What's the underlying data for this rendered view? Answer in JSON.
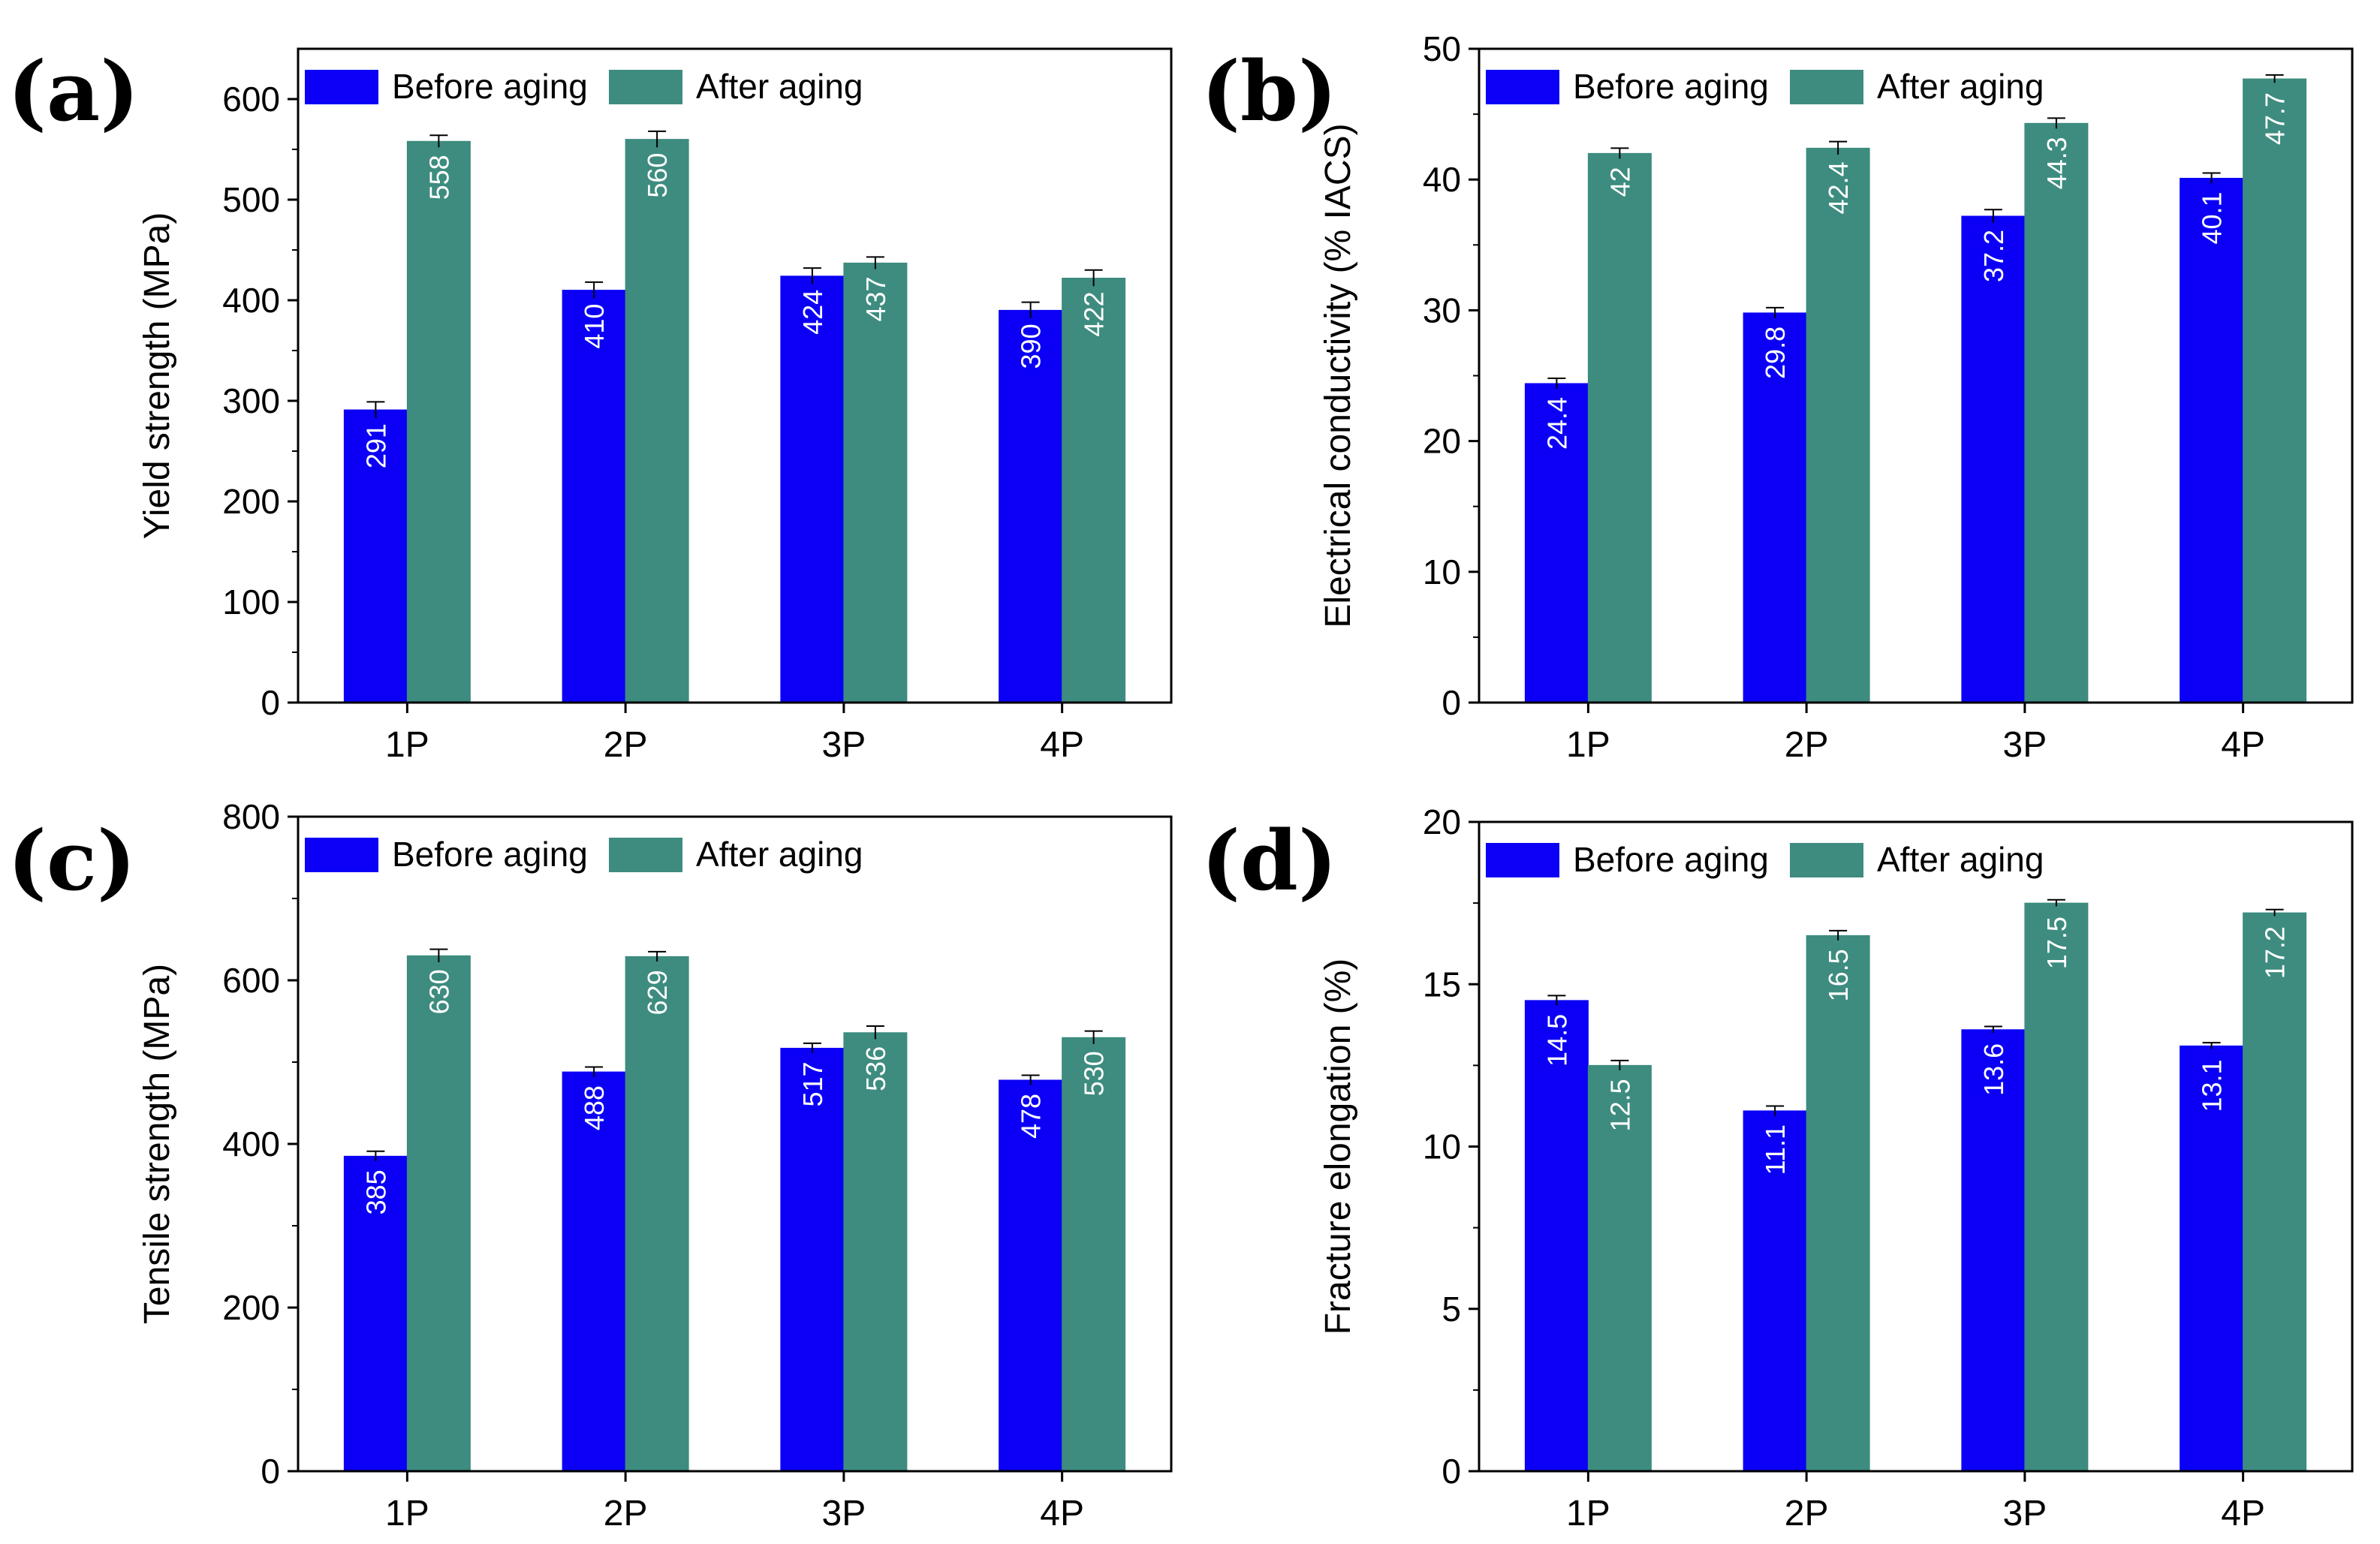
{
  "figure": {
    "series_colors": {
      "before": "#0b00f5",
      "after": "#3d8c7f"
    }
  },
  "chart_data": [
    {
      "panel": "(a)",
      "type": "bar",
      "categories": [
        "1P",
        "2P",
        "3P",
        "4P"
      ],
      "series": [
        {
          "name": "Before aging",
          "values": [
            291,
            410,
            424,
            390
          ],
          "labels": [
            "291",
            "410",
            "424",
            "390"
          ],
          "errors": [
            8,
            8,
            8,
            8
          ]
        },
        {
          "name": "After aging",
          "values": [
            558,
            560,
            437,
            422
          ],
          "labels": [
            "558",
            "560",
            "437",
            "422"
          ],
          "errors": [
            6,
            8,
            6,
            8
          ]
        }
      ],
      "ylabel": "Yield strength (MPa)",
      "ylim": [
        0,
        650
      ],
      "yticks": [
        0,
        100,
        200,
        300,
        400,
        500,
        600
      ],
      "ytick_labels": [
        "0",
        "100",
        "200",
        "300",
        "400",
        "500",
        "600"
      ],
      "legend": "top-left"
    },
    {
      "panel": "(b)",
      "type": "bar",
      "categories": [
        "1P",
        "2P",
        "3P",
        "4P"
      ],
      "series": [
        {
          "name": "Before aging",
          "values": [
            24.4,
            29.8,
            37.2,
            40.1
          ],
          "labels": [
            "24.4",
            "29.8",
            "37.2",
            "40.1"
          ],
          "errors": [
            0.4,
            0.4,
            0.5,
            0.4
          ]
        },
        {
          "name": "After aging",
          "values": [
            42,
            42.4,
            44.3,
            47.7
          ],
          "labels": [
            "42",
            "42.4",
            "44.3",
            "47.7"
          ],
          "errors": [
            0.4,
            0.5,
            0.4,
            0.3
          ]
        }
      ],
      "ylabel": "Electrical conductivity (% IACS)",
      "ylim": [
        0,
        50
      ],
      "yticks": [
        0,
        10,
        20,
        30,
        40,
        50
      ],
      "ytick_labels": [
        "0",
        "10",
        "20",
        "30",
        "40",
        "50"
      ],
      "legend": "top-left"
    },
    {
      "panel": "(c)",
      "type": "bar",
      "categories": [
        "1P",
        "2P",
        "3P",
        "4P"
      ],
      "series": [
        {
          "name": "Before aging",
          "values": [
            385,
            488,
            517,
            478
          ],
          "labels": [
            "385",
            "488",
            "517",
            "478"
          ],
          "errors": [
            6,
            6,
            6,
            6
          ]
        },
        {
          "name": "After aging",
          "values": [
            630,
            629,
            536,
            530
          ],
          "labels": [
            "630",
            "629",
            "536",
            "530"
          ],
          "errors": [
            8,
            6,
            8,
            8
          ]
        }
      ],
      "ylabel": "Tensile strength (MPa)",
      "ylim": [
        0,
        800
      ],
      "yticks": [
        0,
        200,
        400,
        600,
        800
      ],
      "ytick_labels": [
        "0",
        "200",
        "400",
        "600",
        "800"
      ],
      "legend": "top-left"
    },
    {
      "panel": "(d)",
      "type": "bar",
      "categories": [
        "1P",
        "2P",
        "3P",
        "4P"
      ],
      "series": [
        {
          "name": "Before aging",
          "values": [
            14.5,
            11.1,
            13.6,
            13.1
          ],
          "labels": [
            "14.5",
            "11.1",
            "13.6",
            "13.1"
          ],
          "errors": [
            0.15,
            0.15,
            0.1,
            0.1
          ]
        },
        {
          "name": "After aging",
          "values": [
            12.5,
            16.5,
            17.5,
            17.2
          ],
          "labels": [
            "12.5",
            "16.5",
            "17.5",
            "17.2"
          ],
          "errors": [
            0.15,
            0.15,
            0.1,
            0.1
          ]
        }
      ],
      "ylabel": "Fracture elongation (%)",
      "ylim": [
        0,
        20
      ],
      "yticks": [
        0,
        5,
        10,
        15,
        20
      ],
      "ytick_labels": [
        "0",
        "5",
        "10",
        "15",
        "20"
      ],
      "legend": "top-left"
    }
  ]
}
